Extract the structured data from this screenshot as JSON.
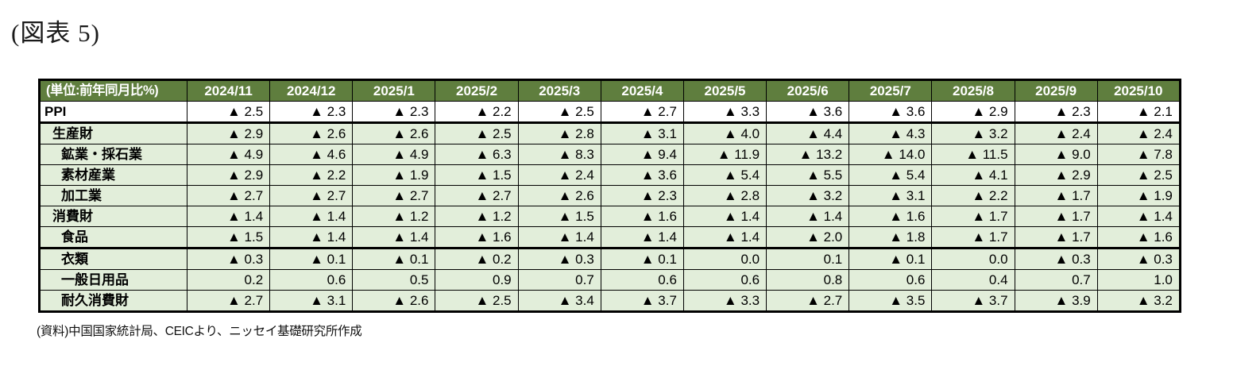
{
  "title": "(図表 5)",
  "footer": "(資料)中国国家統計局、CEICより、ニッセイ基礎研究所作成",
  "colors": {
    "header_bg": "#5f7e3e",
    "header_text": "#ffffff",
    "row_bg_green": "#e2eeda",
    "row_bg_white": "#ffffff",
    "border": "#000000"
  },
  "table": {
    "unit_header": "(単位:前年同月比%)",
    "columns": [
      "2024/11",
      "2024/12",
      "2025/1",
      "2025/2",
      "2025/3",
      "2025/4",
      "2025/5",
      "2025/6",
      "2025/7",
      "2025/8",
      "2025/9",
      "2025/10"
    ],
    "rows": [
      {
        "label": "PPI",
        "indent": 0,
        "bg": "white",
        "thick_bottom": true,
        "values": [
          "▲ 2.5",
          "▲ 2.3",
          "▲ 2.3",
          "▲ 2.2",
          "▲ 2.5",
          "▲ 2.7",
          "▲ 3.3",
          "▲ 3.6",
          "▲ 3.6",
          "▲ 2.9",
          "▲ 2.3",
          "▲ 2.1"
        ]
      },
      {
        "label": "生産財",
        "indent": 1,
        "bg": "green",
        "thick_bottom": false,
        "values": [
          "▲ 2.9",
          "▲ 2.6",
          "▲ 2.6",
          "▲ 2.5",
          "▲ 2.8",
          "▲ 3.1",
          "▲ 4.0",
          "▲ 4.4",
          "▲ 4.3",
          "▲ 3.2",
          "▲ 2.4",
          "▲ 2.4"
        ]
      },
      {
        "label": "鉱業・採石業",
        "indent": 2,
        "bg": "green",
        "thick_bottom": false,
        "values": [
          "▲ 4.9",
          "▲ 4.6",
          "▲ 4.9",
          "▲ 6.3",
          "▲ 8.3",
          "▲ 9.4",
          "▲ 11.9",
          "▲ 13.2",
          "▲ 14.0",
          "▲ 11.5",
          "▲ 9.0",
          "▲ 7.8"
        ]
      },
      {
        "label": "素材産業",
        "indent": 2,
        "bg": "green",
        "thick_bottom": false,
        "values": [
          "▲ 2.9",
          "▲ 2.2",
          "▲ 1.9",
          "▲ 1.5",
          "▲ 2.4",
          "▲ 3.6",
          "▲ 5.4",
          "▲ 5.5",
          "▲ 5.4",
          "▲ 4.1",
          "▲ 2.9",
          "▲ 2.5"
        ]
      },
      {
        "label": "加工業",
        "indent": 2,
        "bg": "green",
        "thick_bottom": false,
        "values": [
          "▲ 2.7",
          "▲ 2.7",
          "▲ 2.7",
          "▲ 2.7",
          "▲ 2.6",
          "▲ 2.3",
          "▲ 2.8",
          "▲ 3.2",
          "▲ 3.1",
          "▲ 2.2",
          "▲ 1.7",
          "▲ 1.9"
        ]
      },
      {
        "label": "消費財",
        "indent": 1,
        "bg": "green",
        "thick_bottom": false,
        "values": [
          "▲ 1.4",
          "▲ 1.4",
          "▲ 1.2",
          "▲ 1.2",
          "▲ 1.5",
          "▲ 1.6",
          "▲ 1.4",
          "▲ 1.4",
          "▲ 1.6",
          "▲ 1.7",
          "▲ 1.7",
          "▲ 1.4"
        ]
      },
      {
        "label": "食品",
        "indent": 2,
        "bg": "green",
        "thick_bottom": true,
        "values": [
          "▲ 1.5",
          "▲ 1.4",
          "▲ 1.4",
          "▲ 1.6",
          "▲ 1.4",
          "▲ 1.4",
          "▲ 1.4",
          "▲ 2.0",
          "▲ 1.8",
          "▲ 1.7",
          "▲ 1.7",
          "▲ 1.6"
        ]
      },
      {
        "label": "衣類",
        "indent": 2,
        "bg": "green",
        "thick_bottom": false,
        "values": [
          "▲ 0.3",
          "▲ 0.1",
          "▲ 0.1",
          "▲ 0.2",
          "▲ 0.3",
          "▲ 0.1",
          "0.0",
          "0.1",
          "▲ 0.1",
          "0.0",
          "▲ 0.3",
          "▲ 0.3"
        ]
      },
      {
        "label": "一般日用品",
        "indent": 2,
        "bg": "green",
        "thick_bottom": false,
        "values": [
          "0.2",
          "0.6",
          "0.5",
          "0.9",
          "0.7",
          "0.6",
          "0.6",
          "0.8",
          "0.6",
          "0.4",
          "0.7",
          "1.0"
        ]
      },
      {
        "label": "耐久消費財",
        "indent": 2,
        "bg": "green",
        "thick_bottom": false,
        "values": [
          "▲ 2.7",
          "▲ 3.1",
          "▲ 2.6",
          "▲ 2.5",
          "▲ 3.4",
          "▲ 3.7",
          "▲ 3.3",
          "▲ 2.7",
          "▲ 3.5",
          "▲ 3.7",
          "▲ 3.9",
          "▲ 3.2"
        ]
      }
    ]
  }
}
